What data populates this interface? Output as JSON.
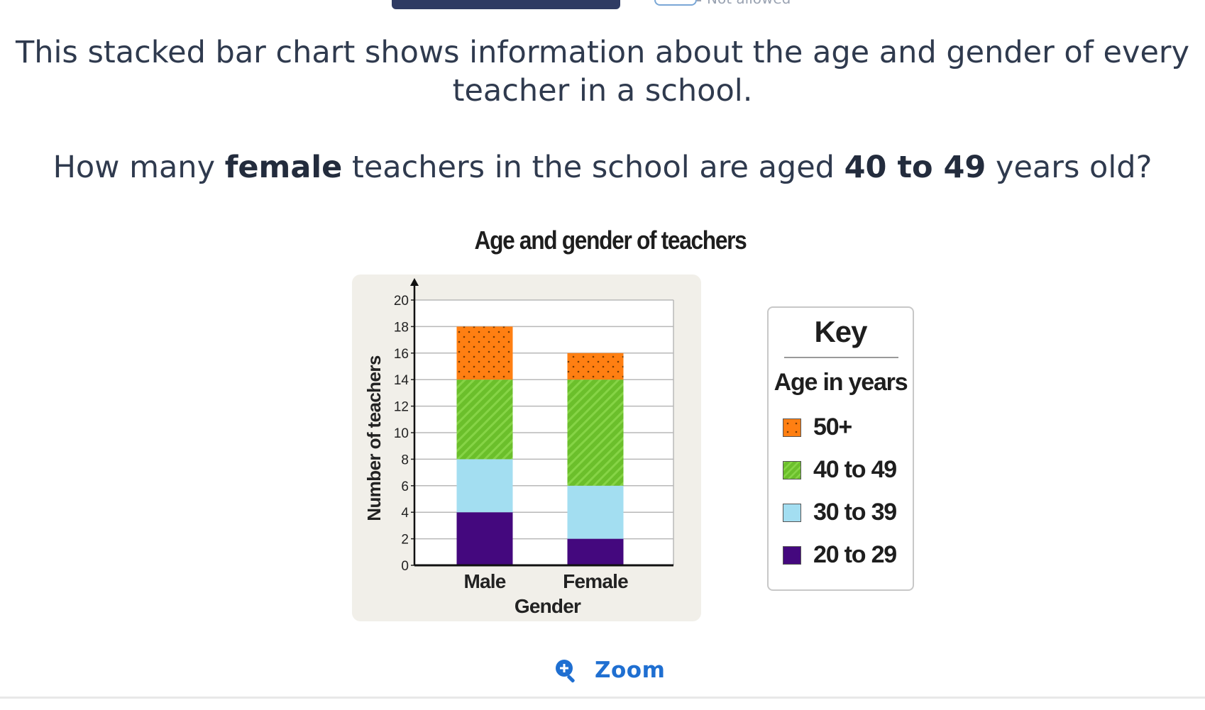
{
  "question": {
    "line1": "This stacked bar chart shows information about the age and gender of every",
    "line2": "teacher in a school.",
    "ask_pre": "How many ",
    "ask_bold1": "female",
    "ask_mid": " teachers in the school are aged ",
    "ask_bold2": "40 to 49",
    "ask_post": " years old?"
  },
  "header": {
    "partial_text": "Not allowed"
  },
  "chart_data": {
    "type": "bar",
    "stacked": true,
    "title": "Age and gender of teachers",
    "xlabel": "Gender",
    "ylabel": "Number of teachers",
    "categories": [
      "Male",
      "Female"
    ],
    "ylim": [
      0,
      20
    ],
    "yticks": [
      0,
      2,
      4,
      6,
      8,
      10,
      12,
      14,
      16,
      18,
      20
    ],
    "grid": true,
    "series": [
      {
        "name": "20 to 29",
        "values": [
          4,
          2
        ],
        "color": "#44087e",
        "pattern": "solid"
      },
      {
        "name": "30 to 39",
        "values": [
          4,
          4
        ],
        "color": "#a3def1",
        "pattern": "solid"
      },
      {
        "name": "40 to 49",
        "values": [
          6,
          8
        ],
        "color": "#6bbf2b",
        "pattern": "stripes"
      },
      {
        "name": "50+",
        "values": [
          4,
          2
        ],
        "color": "#ff7f12",
        "pattern": "dots"
      }
    ]
  },
  "key": {
    "title": "Key",
    "subtitle": "Age in years",
    "items": [
      {
        "label": "50+",
        "series": 3
      },
      {
        "label": "40 to 49",
        "series": 2
      },
      {
        "label": "30 to 39",
        "series": 1
      },
      {
        "label": "20 to 29",
        "series": 0
      }
    ]
  },
  "zoom": {
    "label": "Zoom",
    "icon": "zoom-in-icon"
  }
}
